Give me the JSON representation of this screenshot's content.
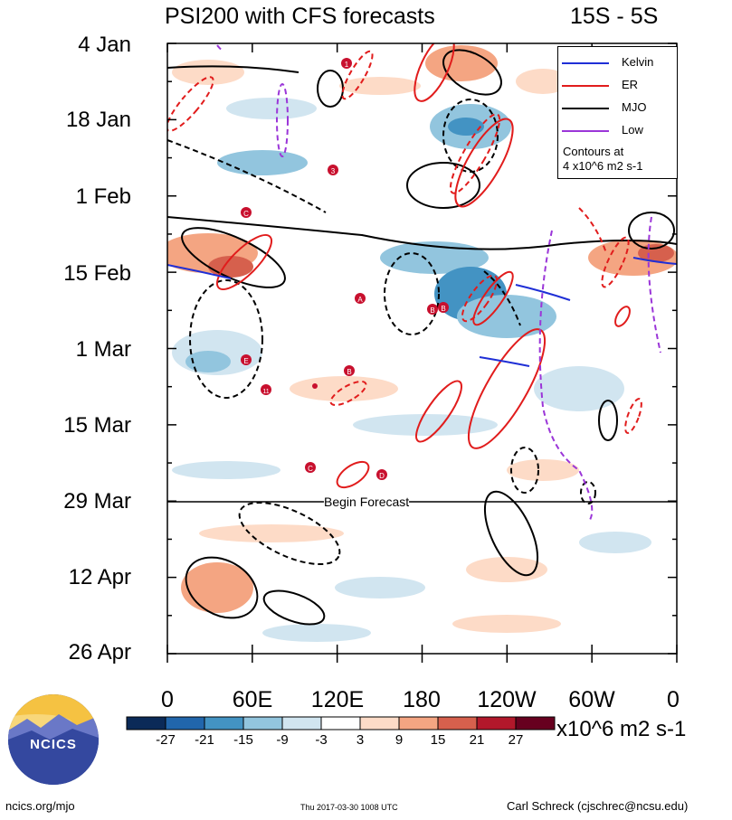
{
  "chart_data": {
    "type": "heatmap",
    "title": "PSI200 with CFS forecasts",
    "subtitle": "15S - 5S",
    "y_tick_labels": [
      "4 Jan",
      "18 Jan",
      "1 Feb",
      "15 Feb",
      "1 Mar",
      "15 Mar",
      "29 Mar",
      "12 Apr",
      "26 Apr"
    ],
    "x_tick_labels": [
      "0",
      "60E",
      "120E",
      "180",
      "120W",
      "60W",
      "0"
    ],
    "x_range_deg_east": [
      0,
      360
    ],
    "forecast_start": "29 Mar",
    "forecast_label": "Begin Forecast",
    "colorbar": {
      "tick_labels": [
        "-27",
        "-21",
        "-15",
        "-9",
        "-3",
        "3",
        "9",
        "15",
        "21",
        "27"
      ],
      "colors": [
        "#0b2a58",
        "#2166ac",
        "#4393c3",
        "#92c5de",
        "#d1e5f0",
        "#ffffff",
        "#fddbc7",
        "#f4a582",
        "#d6604d",
        "#b2182b",
        "#67001f"
      ],
      "units": "x10^6 m2 s-1"
    },
    "legend": {
      "items": [
        {
          "label": "Kelvin",
          "color": "#1f2fd6",
          "style": "solid"
        },
        {
          "label": "ER",
          "color": "#e11c1c",
          "style": "solid"
        },
        {
          "label": "MJO",
          "color": "#000000",
          "style": "solid"
        },
        {
          "label": "Low",
          "color": "#9b36d8",
          "style": "solid"
        }
      ],
      "note_line1": "Contours at",
      "note_line2": "4 x10^6 m2 s-1",
      "position": "top-right"
    },
    "storm_markers": [
      "1",
      "3",
      "C",
      "A",
      "B",
      "B",
      "B",
      "E",
      "11",
      "B",
      "C",
      "D"
    ]
  },
  "footer": {
    "left": "ncics.org/mjo",
    "middle": "Thu 2017-03-30 1008 UTC",
    "right": "Carl Schreck (cjschrec@ncsu.edu)"
  },
  "logo": {
    "text": "NCICS"
  }
}
